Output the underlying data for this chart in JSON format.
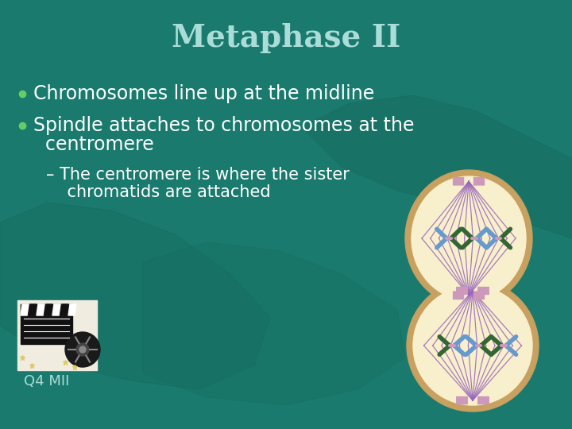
{
  "background_color": "#1a7a6e",
  "title": "Metaphase II",
  "title_color": "#aaddd8",
  "title_fontsize": 28,
  "bullet_color": "#ffffff",
  "bullet_fontsize": 17,
  "sub_bullet_fontsize": 15,
  "bullet_dot_color": "#66cc66",
  "bullet1": "Chromosomes line up at the midline",
  "bullet2": "Spindle attaches to chromosomes at the",
  "bullet2b": "  centromere",
  "sub_bullet1": "– The centromere is where the sister",
  "sub_bullet2": "    chromatids are attached",
  "label_text": "Q4 MII",
  "label_color": "#aaddd8",
  "label_fontsize": 13,
  "cell_outer_color": "#c8a060",
  "cell_inner_color": "#f8f0cc",
  "spindle_color": "#9966bb",
  "chrom_blue": "#6699cc",
  "chrom_green": "#336633",
  "centromere_color": "#cc99bb",
  "hand_color": "#166b5e"
}
